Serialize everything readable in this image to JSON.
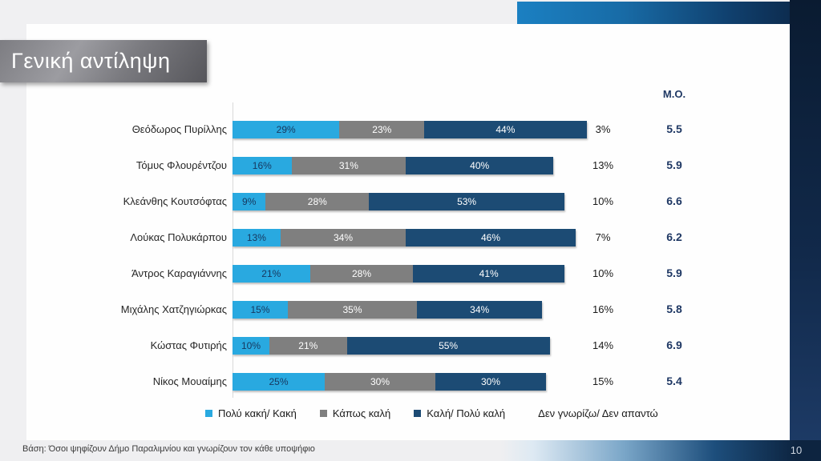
{
  "slide": {
    "title": "Γενική αντίληψη",
    "page_number": "10",
    "footer": "Βάση: Όσοι ψηφίζουν Δήμο Παραλιμνίου και γνωρίζουν τον κάθε υποψήφιο"
  },
  "chart_data": {
    "type": "bar",
    "variant": "horizontal-stacked",
    "title": "Γενική αντίληψη",
    "mo_header": "M.O.",
    "legend": {
      "position": "bottom",
      "items": [
        "Πολύ κακή/ Κακή",
        "Κάπως καλή",
        "Καλή/ Πολύ καλή",
        "Δεν γνωρίζω/ Δεν απαντώ"
      ]
    },
    "colors": {
      "bad": "#29a9e0",
      "somewhat": "#7f7f7f",
      "good": "#1c4b74",
      "label_on_bad": "#17375e",
      "label_on_dark": "#ffffff",
      "mo_text": "#1f3864"
    },
    "categories": [
      "Θεόδωρος Πυρίλλης",
      "Τόμυς Φλουρέντζου",
      "Κλεάνθης Κουτσόφτας",
      "Λούκας Πολυκάρπου",
      "Άντρος Καραγιάννης",
      "Μιχάλης Χατζηγιώρκας",
      "Κώστας Φυτιρής",
      "Νίκος Μουαίμης"
    ],
    "series": [
      {
        "name": "Πολύ κακή/ Κακή",
        "values": [
          29,
          16,
          9,
          13,
          21,
          15,
          10,
          25
        ]
      },
      {
        "name": "Κάπως καλή",
        "values": [
          23,
          31,
          28,
          34,
          28,
          35,
          21,
          30
        ]
      },
      {
        "name": "Καλή/ Πολύ καλή",
        "values": [
          44,
          40,
          53,
          46,
          41,
          34,
          55,
          30
        ]
      }
    ],
    "dont_know_values": [
      "3%",
      "13%",
      "10%",
      "7%",
      "10%",
      "16%",
      "14%",
      "15%"
    ],
    "mo_values": [
      "5.5",
      "5.9",
      "6.6",
      "6.2",
      "5.9",
      "5.8",
      "6.9",
      "5.4"
    ],
    "xlim": [
      0,
      100
    ],
    "grid": false
  }
}
